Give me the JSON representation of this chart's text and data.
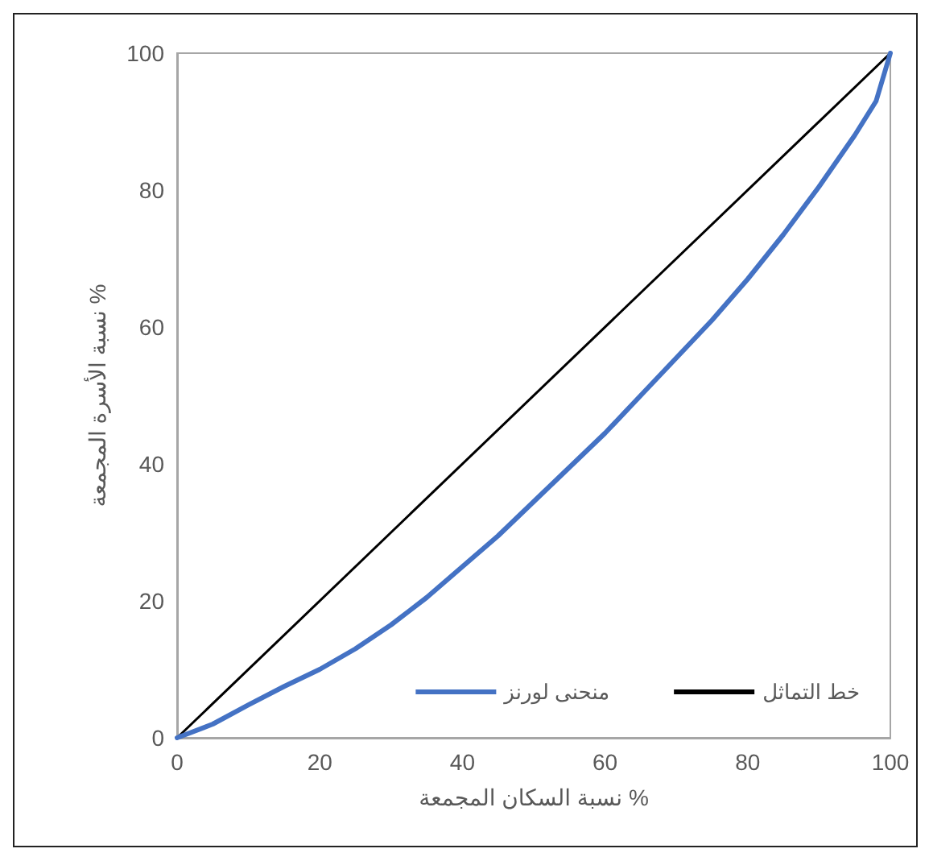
{
  "chart_data": {
    "type": "line",
    "xlabel": "نسبة السكان المجمعة %",
    "ylabel": "نسبة الأسرة المجمعة %",
    "xlim": [
      0,
      100
    ],
    "xticks": [
      0,
      20,
      40,
      60,
      80,
      100
    ],
    "ylim": [
      0,
      100
    ],
    "yticks": [
      0,
      20,
      40,
      60,
      80,
      100
    ],
    "grid": false,
    "legend": "bottom right",
    "marker": "none",
    "line_style": "solid",
    "series": [
      {
        "name": "منحنى لورنز",
        "color": "#4472c4",
        "x": [
          0,
          5,
          10,
          15,
          20,
          25,
          30,
          35,
          40,
          45,
          50,
          55,
          60,
          65,
          70,
          75,
          80,
          85,
          90,
          95,
          98,
          100
        ],
        "values": [
          0,
          2,
          4.8,
          7.5,
          10,
          13,
          16.5,
          20.5,
          25,
          29.5,
          34.5,
          39.5,
          44.5,
          50,
          55.5,
          61,
          67,
          73.5,
          80.5,
          88,
          93,
          100
        ]
      },
      {
        "name": "خط التماثل",
        "color": "#000000",
        "x": [
          0,
          100
        ],
        "values": [
          0,
          100
        ]
      }
    ]
  }
}
